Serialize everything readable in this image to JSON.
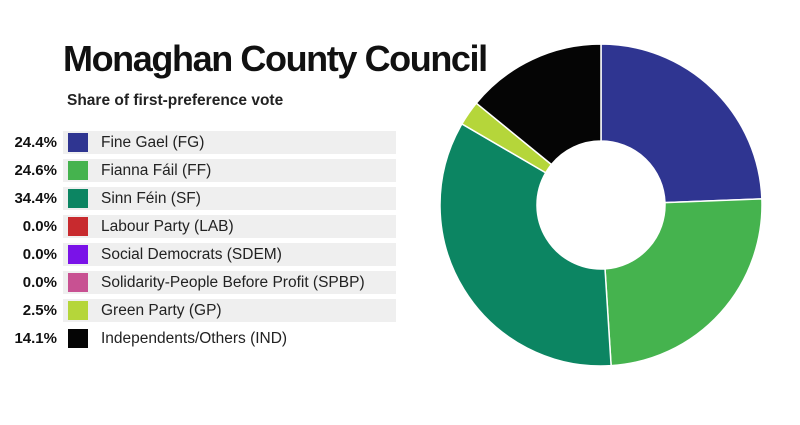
{
  "header": {
    "title": "Monaghan County Council",
    "subtitle": "Share of first-preference vote"
  },
  "chart_data": {
    "type": "pie",
    "style": "donut",
    "title": "Monaghan County Council",
    "subtitle": "Share of first-preference vote",
    "legend_position": "left",
    "series": [
      {
        "name": "Fine Gael (FG)",
        "value": 24.4,
        "label": "24.4%",
        "color": "#2f3591"
      },
      {
        "name": "Fianna Fáil (FF)",
        "value": 24.6,
        "label": "24.6%",
        "color": "#45b34e"
      },
      {
        "name": "Sinn Féin (SF)",
        "value": 34.4,
        "label": "34.4%",
        "color": "#0c8562"
      },
      {
        "name": "Labour Party (LAB)",
        "value": 0.0,
        "label": "0.0%",
        "color": "#c82a2e"
      },
      {
        "name": "Social Democrats (SDEM)",
        "value": 0.0,
        "label": "0.0%",
        "color": "#7a12e8"
      },
      {
        "name": "Solidarity-People Before Profit (SPBP)",
        "value": 0.0,
        "label": "0.0%",
        "color": "#c85192"
      },
      {
        "name": "Green Party (GP)",
        "value": 2.5,
        "label": "2.5%",
        "color": "#b5d63a"
      },
      {
        "name": "Independents/Others (IND)",
        "value": 14.1,
        "label": "14.1%",
        "color": "#050505"
      }
    ]
  }
}
